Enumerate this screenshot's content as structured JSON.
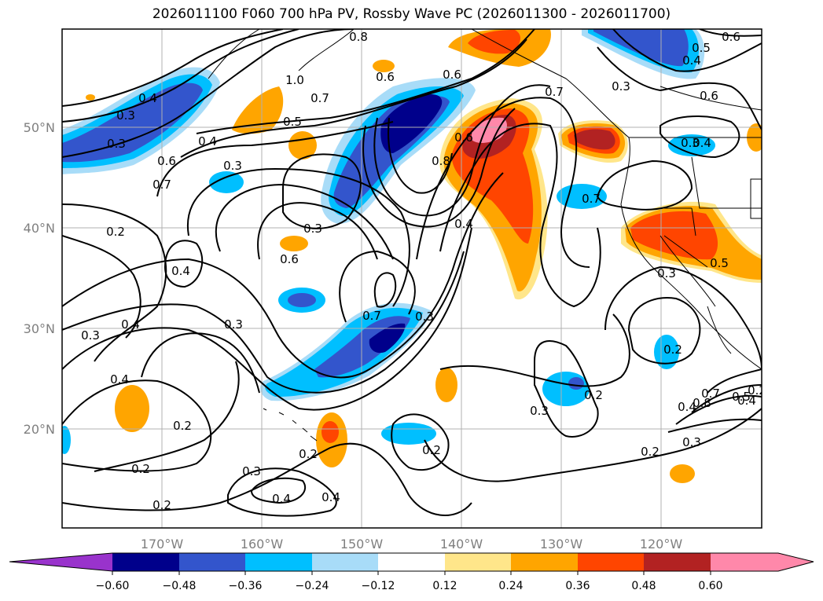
{
  "title": "2026011100 F060 700 hPa PV, Rossby Wave PC (2026011300 - 2026011700)",
  "axes": {
    "lat_labels": [
      "50°N",
      "40°N",
      "30°N",
      "20°N"
    ],
    "lon_labels": [
      "170°W",
      "160°W",
      "150°W",
      "140°W",
      "130°W",
      "120°W"
    ]
  },
  "colorbar": {
    "ticks": [
      "−0.60",
      "−0.48",
      "−0.36",
      "−0.24",
      "−0.12",
      "0.12",
      "0.24",
      "0.36",
      "0.48",
      "0.60"
    ],
    "colors": {
      "under": "#9933cc",
      "n060": "#00008b",
      "n048": "#3355cc",
      "n036": "#00bfff",
      "n024": "#a8dcf8",
      "zero": "#ffffff",
      "p012": "#ffe68a",
      "p024": "#ffa500",
      "p036": "#ff4500",
      "p048": "#b22222",
      "p060": "#ff88aa"
    }
  },
  "contour_labels": [
    "0.6",
    "0.8",
    "0.5",
    "0.4",
    "0.3",
    "0.6",
    "1.0",
    "0.7",
    "0.6",
    "0.4",
    "0.3",
    "0.3",
    "0.5",
    "0.7",
    "0.6",
    "0.4",
    "0.3",
    "0.8",
    "0.6",
    "0.3",
    "0.4",
    "0.7",
    "0.6",
    "0.7",
    "0.3",
    "0.4",
    "0.2",
    "0.6",
    "0.4",
    "0.3",
    "0.5",
    "0.3",
    "0.7",
    "0.3",
    "0.4",
    "0.3",
    "0.2",
    "0.4",
    "0.2",
    "0.2",
    "0.2",
    "0.2",
    "0.3",
    "0.2",
    "0.3",
    "0.4",
    "0.4",
    "0.2",
    "0.2",
    "0.3",
    "0.4",
    "0.8",
    "0.7",
    "0.5",
    "0.4",
    "0.2"
  ]
}
